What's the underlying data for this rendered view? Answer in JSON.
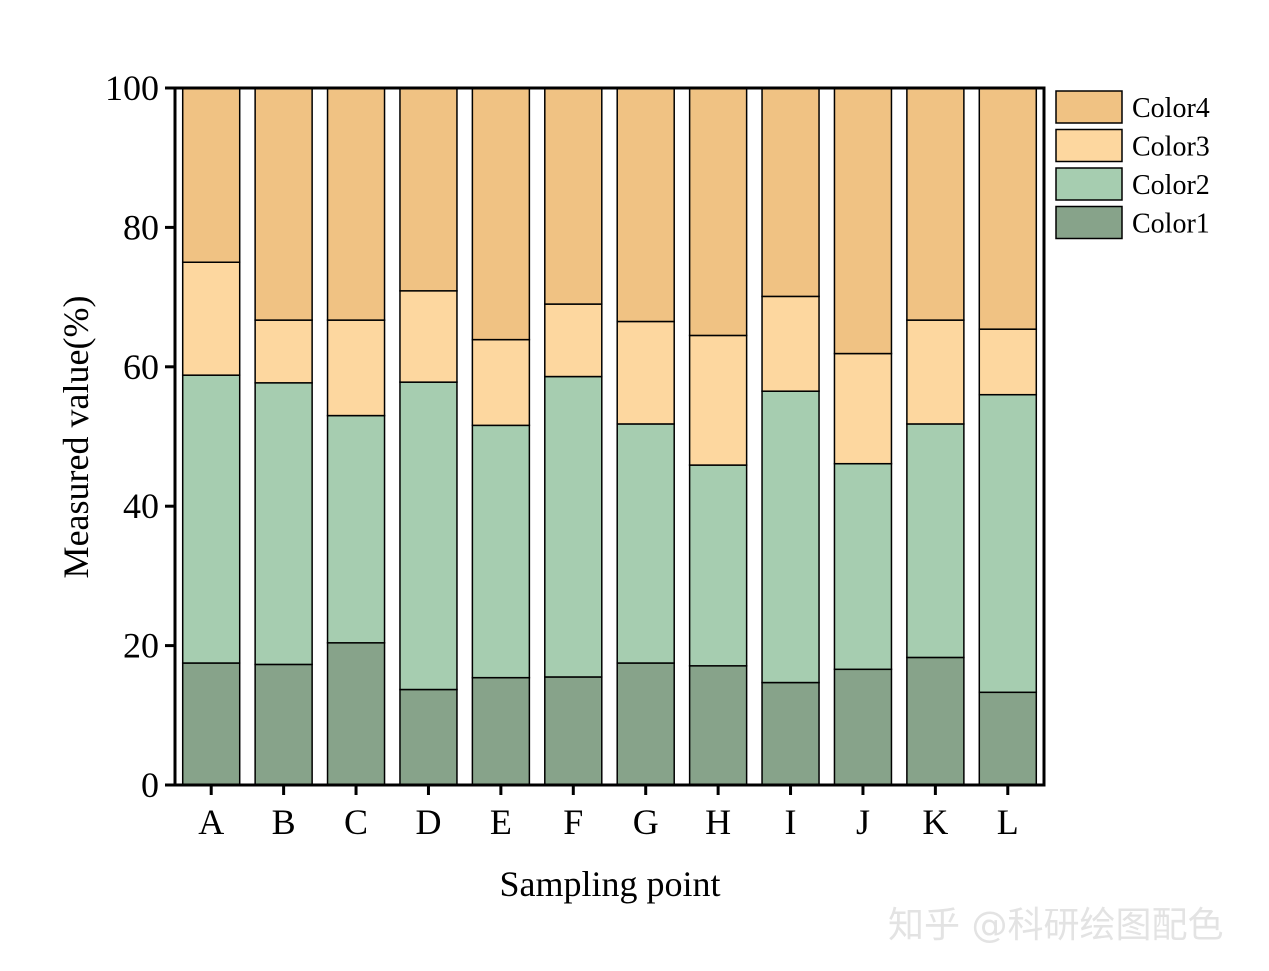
{
  "chart_data": {
    "type": "bar",
    "stacked": true,
    "percent": true,
    "categories": [
      "A",
      "B",
      "C",
      "D",
      "E",
      "F",
      "G",
      "H",
      "I",
      "J",
      "K",
      "L"
    ],
    "series": [
      {
        "name": "Color1",
        "color": "#87A38A",
        "values": [
          17.5,
          17.3,
          20.4,
          13.7,
          15.4,
          15.5,
          17.5,
          17.1,
          14.7,
          16.6,
          18.3,
          13.3
        ]
      },
      {
        "name": "Color2",
        "color": "#A6CDB0",
        "values": [
          41.3,
          40.4,
          32.6,
          44.1,
          36.2,
          43.1,
          34.3,
          28.8,
          41.8,
          29.5,
          33.5,
          42.7
        ]
      },
      {
        "name": "Color3",
        "color": "#FDD79F",
        "values": [
          16.2,
          9.0,
          13.7,
          13.1,
          12.3,
          10.4,
          14.7,
          18.6,
          13.6,
          15.8,
          14.9,
          9.4
        ]
      },
      {
        "name": "Color4",
        "color": "#F0C283",
        "values": [
          25.0,
          33.3,
          33.3,
          29.1,
          36.1,
          31.0,
          33.5,
          35.5,
          29.9,
          38.1,
          33.3,
          34.6
        ]
      }
    ],
    "xlabel": "Sampling point",
    "ylabel": "Measured value(%)",
    "ylim": [
      0,
      100
    ],
    "yticks": [
      0,
      20,
      40,
      60,
      80,
      100
    ],
    "grid": false,
    "legend": {
      "placement": "top-right-outside",
      "order": [
        "Color4",
        "Color3",
        "Color2",
        "Color1"
      ]
    }
  },
  "watermark": "知乎 @科研绘图配色"
}
